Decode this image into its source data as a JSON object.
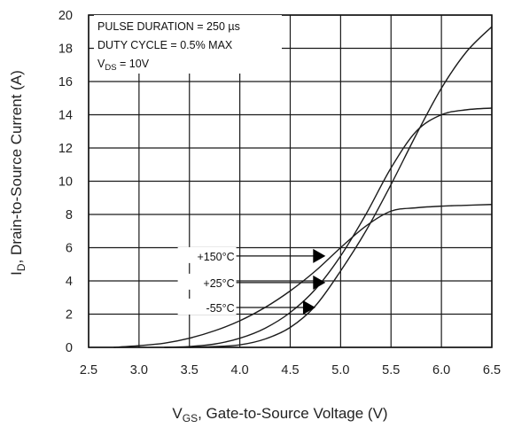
{
  "chart_data": {
    "type": "line",
    "xlabel_main": "V",
    "xlabel_sub": "GS",
    "xlabel_rest": ", Gate-to-Source Voltage (V)",
    "ylabel_main": "I",
    "ylabel_sub": "D",
    "ylabel_rest": ", Drain-to-Source Current (A)",
    "xlim": [
      2.5,
      6.5
    ],
    "ylim": [
      0,
      20
    ],
    "x_ticks": [
      "2.5",
      "3.0",
      "3.5",
      "4.0",
      "4.5",
      "5.0",
      "5.5",
      "6.0",
      "6.5"
    ],
    "y_ticks": [
      "0",
      "2",
      "4",
      "6",
      "8",
      "10",
      "12",
      "14",
      "16",
      "18",
      "20"
    ],
    "x_tick_values": [
      2.5,
      3.0,
      3.5,
      4.0,
      4.5,
      5.0,
      5.5,
      6.0,
      6.5
    ],
    "y_tick_values": [
      0,
      2,
      4,
      6,
      8,
      10,
      12,
      14,
      16,
      18,
      20
    ],
    "grid": true,
    "notes": {
      "line1": "PULSE DURATION = 250 µs",
      "line2": "DUTY CYCLE = 0.5% MAX",
      "line3_main": "V",
      "line3_sub": "DS",
      "line3_rest": " = 10V"
    },
    "series": [
      {
        "name": "+150°C",
        "x": [
          2.75,
          3.0,
          3.25,
          3.5,
          3.75,
          4.0,
          4.25,
          4.5,
          4.75,
          5.0,
          5.25,
          5.5,
          5.75,
          6.0,
          6.25,
          6.5
        ],
        "y": [
          0.0,
          0.1,
          0.25,
          0.55,
          1.0,
          1.6,
          2.4,
          3.4,
          4.6,
          6.0,
          7.3,
          8.2,
          8.4,
          8.5,
          8.55,
          8.6
        ]
      },
      {
        "name": "+25°C",
        "x": [
          3.25,
          3.5,
          3.75,
          4.0,
          4.25,
          4.5,
          4.75,
          5.0,
          5.25,
          5.5,
          5.75,
          6.0,
          6.25,
          6.5
        ],
        "y": [
          0.0,
          0.05,
          0.2,
          0.55,
          1.15,
          2.1,
          3.5,
          5.5,
          8.0,
          10.8,
          13.0,
          14.0,
          14.3,
          14.4
        ]
      },
      {
        "name": "-55°C",
        "x": [
          3.5,
          3.75,
          4.0,
          4.25,
          4.5,
          4.75,
          5.0,
          5.25,
          5.5,
          5.75,
          6.0,
          6.25,
          6.5
        ],
        "y": [
          0.0,
          0.05,
          0.15,
          0.5,
          1.2,
          2.5,
          4.6,
          7.0,
          9.8,
          12.8,
          15.6,
          17.8,
          19.3
        ]
      }
    ],
    "callouts": [
      {
        "label": "+150°C",
        "from_x": 4.0,
        "to_x": 4.85,
        "y": 5.5
      },
      {
        "label": "+25°C",
        "from_x": 4.0,
        "to_x": 4.85,
        "y": 3.9
      },
      {
        "label": "-55°C",
        "from_x": 4.0,
        "to_x": 4.75,
        "y": 2.4
      }
    ]
  }
}
